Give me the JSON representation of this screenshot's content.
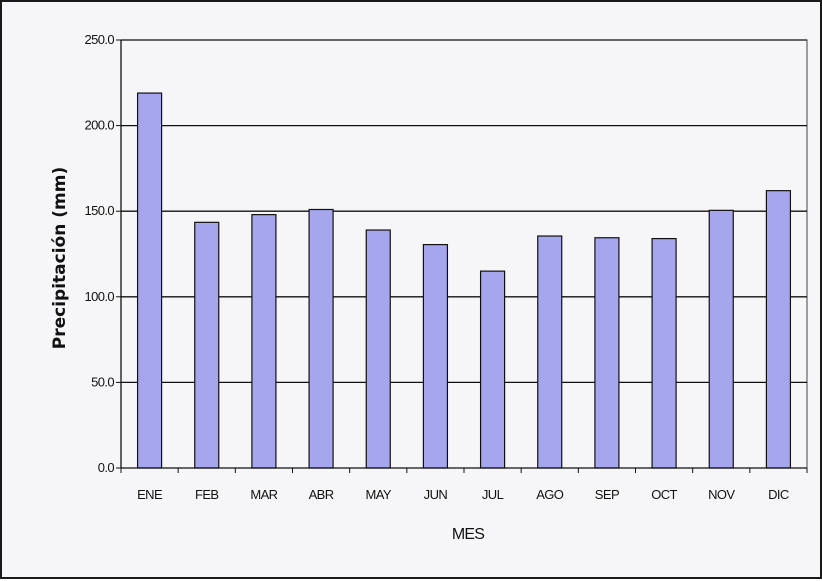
{
  "chart_data": {
    "type": "bar",
    "categories": [
      "ENE",
      "FEB",
      "MAR",
      "ABR",
      "MAY",
      "JUN",
      "JUL",
      "AGO",
      "SEP",
      "OCT",
      "NOV",
      "DIC"
    ],
    "values": [
      219.0,
      143.5,
      148.0,
      151.0,
      139.0,
      130.5,
      115.0,
      135.5,
      134.5,
      134.0,
      150.5,
      162.0
    ],
    "title": "",
    "xlabel": "MES",
    "ylabel": "Precipitación (mm)",
    "ylim": [
      0,
      250
    ],
    "yticks": [
      0,
      50,
      100,
      150,
      200,
      250
    ],
    "ytick_labels": [
      "0.0",
      "50.0",
      "100.0",
      "150.0",
      "200.0",
      "250.0"
    ],
    "grid": true,
    "legend": "none",
    "colors": {
      "bar_fill": "#a6a6ee",
      "bar_stroke": "#111111",
      "grid": "#111111"
    }
  }
}
